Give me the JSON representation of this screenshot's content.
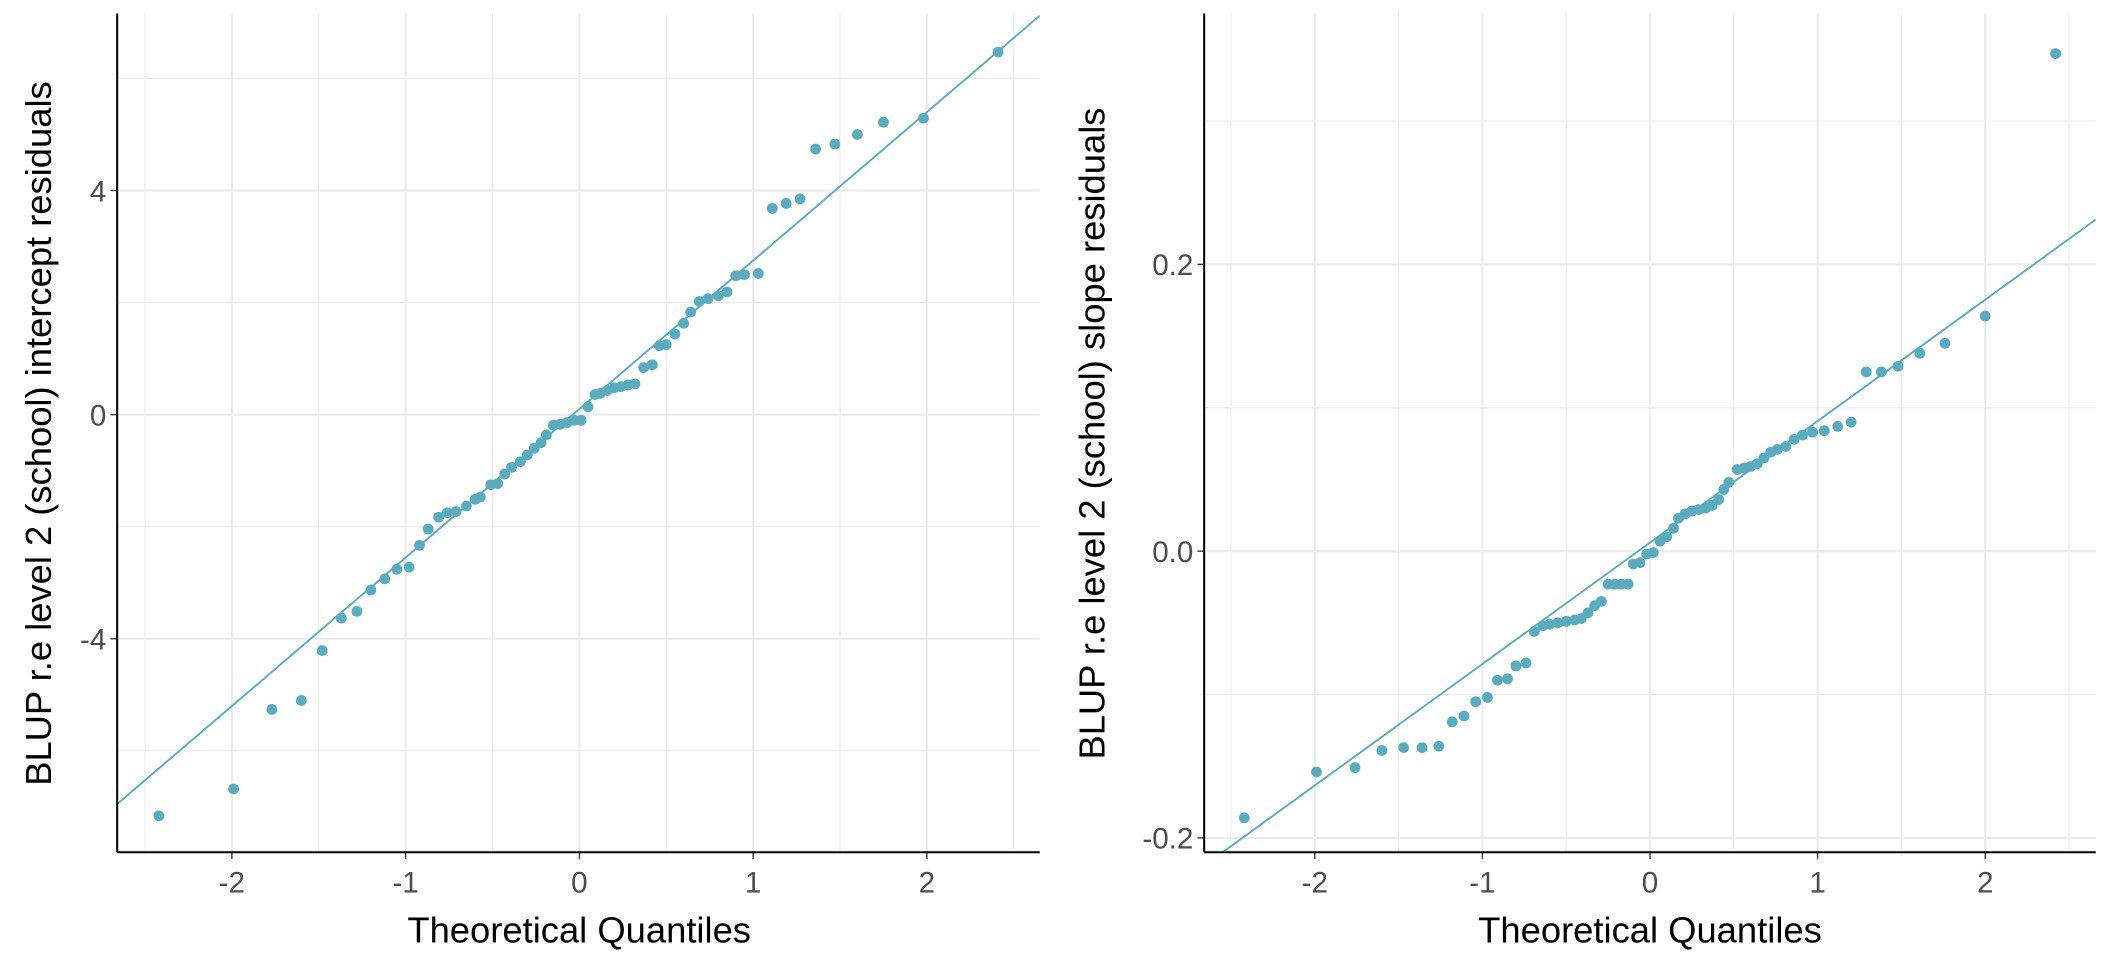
{
  "chart_data": [
    {
      "type": "scatter",
      "title": "",
      "xlabel": "Theoretical Quantiles",
      "ylabel": "BLUP r.e level 2 (school) intercept residuals",
      "xlim": [
        -2.66,
        2.65
      ],
      "ylim": [
        -7.81,
        7.16
      ],
      "xticks": [
        -2,
        -1,
        0,
        1,
        2
      ],
      "yticks": [
        -4,
        0,
        4
      ],
      "ytick_labels": [
        "-4",
        "0",
        "4"
      ],
      "grid": true,
      "point_color": "#5aabbd",
      "line_color": "#5aabbd",
      "reference_line": {
        "intercept": 0.1,
        "slope": 2.65
      },
      "x": [
        -2.42,
        -1.99,
        -1.77,
        -1.6,
        -1.48,
        -1.37,
        -1.28,
        -1.2,
        -1.12,
        -1.05,
        -0.98,
        -0.92,
        -0.87,
        -0.81,
        -0.76,
        -0.71,
        -0.65,
        -0.6,
        -0.57,
        -0.51,
        -0.47,
        -0.43,
        -0.39,
        -0.34,
        -0.3,
        -0.26,
        -0.22,
        -0.19,
        -0.15,
        -0.11,
        -0.07,
        -0.03,
        0.01,
        0.05,
        0.09,
        0.12,
        0.16,
        0.2,
        0.24,
        0.28,
        0.32,
        0.37,
        0.42,
        0.46,
        0.5,
        0.55,
        0.6,
        0.64,
        0.69,
        0.74,
        0.8,
        0.85,
        0.9,
        0.95,
        1.03,
        1.11,
        1.19,
        1.27,
        1.36,
        1.47,
        1.6,
        1.75,
        1.98,
        2.41
      ],
      "y": [
        -7.16,
        -6.68,
        -5.26,
        -5.1,
        -4.21,
        -3.63,
        -3.51,
        -3.13,
        -2.93,
        -2.76,
        -2.72,
        -2.33,
        -2.04,
        -1.83,
        -1.75,
        -1.73,
        -1.63,
        -1.51,
        -1.47,
        -1.25,
        -1.23,
        -1.06,
        -0.94,
        -0.84,
        -0.72,
        -0.6,
        -0.5,
        -0.36,
        -0.19,
        -0.17,
        -0.14,
        -0.1,
        -0.1,
        0.14,
        0.36,
        0.38,
        0.43,
        0.48,
        0.5,
        0.53,
        0.55,
        0.84,
        0.89,
        1.23,
        1.25,
        1.44,
        1.63,
        1.83,
        2.02,
        2.07,
        2.12,
        2.19,
        2.48,
        2.5,
        2.52,
        3.68,
        3.77,
        3.85,
        4.74,
        4.83,
        5.0,
        5.22,
        5.29,
        6.47
      ]
    },
    {
      "type": "scatter",
      "title": "",
      "xlabel": "Theoretical Quantiles",
      "ylabel": "BLUP r.e level 2 (school) slope residuals",
      "xlim": [
        -2.66,
        2.66
      ],
      "ylim": [
        -0.21,
        0.375
      ],
      "xticks": [
        -2,
        -1,
        0,
        1,
        2
      ],
      "yticks": [
        -0.2,
        0.0,
        0.2
      ],
      "ytick_labels": [
        "-0.2",
        "0.0",
        "0.2"
      ],
      "grid": true,
      "point_color": "#5aabbd",
      "line_color": "#5aabbd",
      "reference_line": {
        "intercept": 0.006,
        "slope": 0.0847
      },
      "x": [
        -2.42,
        -1.99,
        -1.76,
        -1.6,
        -1.47,
        -1.36,
        -1.26,
        -1.18,
        -1.11,
        -1.04,
        -0.97,
        -0.91,
        -0.85,
        -0.8,
        -0.74,
        -0.69,
        -0.64,
        -0.6,
        -0.55,
        -0.5,
        -0.45,
        -0.41,
        -0.37,
        -0.33,
        -0.29,
        -0.25,
        -0.21,
        -0.17,
        -0.13,
        -0.1,
        -0.06,
        -0.02,
        0.02,
        0.06,
        0.1,
        0.14,
        0.17,
        0.21,
        0.25,
        0.29,
        0.33,
        0.37,
        0.41,
        0.44,
        0.47,
        0.52,
        0.56,
        0.6,
        0.64,
        0.68,
        0.72,
        0.76,
        0.81,
        0.86,
        0.91,
        0.97,
        1.04,
        1.12,
        1.2,
        1.29,
        1.38,
        1.48,
        1.61,
        1.76,
        2.0,
        2.42
      ],
      "y": [
        -0.186,
        -0.154,
        -0.151,
        -0.139,
        -0.137,
        -0.137,
        -0.136,
        -0.119,
        -0.115,
        -0.105,
        -0.102,
        -0.09,
        -0.089,
        -0.08,
        -0.078,
        -0.056,
        -0.052,
        -0.051,
        -0.05,
        -0.049,
        -0.048,
        -0.047,
        -0.043,
        -0.038,
        -0.035,
        -0.023,
        -0.023,
        -0.023,
        -0.023,
        -0.009,
        -0.008,
        -0.002,
        -0.001,
        0.007,
        0.01,
        0.016,
        0.023,
        0.026,
        0.028,
        0.029,
        0.03,
        0.032,
        0.036,
        0.043,
        0.048,
        0.057,
        0.058,
        0.059,
        0.061,
        0.065,
        0.069,
        0.071,
        0.073,
        0.078,
        0.081,
        0.083,
        0.084,
        0.087,
        0.09,
        0.125,
        0.125,
        0.129,
        0.138,
        0.145,
        0.164,
        0.347
      ]
    }
  ]
}
